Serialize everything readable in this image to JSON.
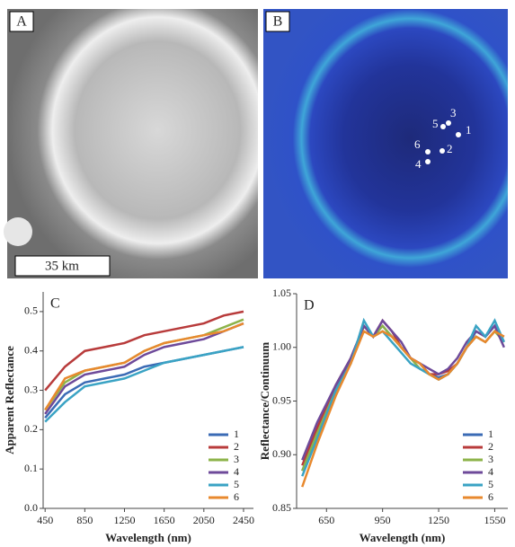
{
  "images": {
    "a": {
      "label": "A",
      "scale_bar": "35 km"
    },
    "b": {
      "label": "B",
      "points": [
        "1",
        "2",
        "3",
        "4",
        "5",
        "6"
      ]
    }
  },
  "chart_data": [
    {
      "type": "line",
      "label": "C",
      "x_label": "Wavelength (nm)",
      "y_label": "Apparent Reflectance",
      "x": [
        450,
        650,
        850,
        1050,
        1250,
        1450,
        1650,
        1850,
        2050,
        2250,
        2450
      ],
      "xlim": [
        430,
        2550
      ],
      "xticks": [
        450,
        850,
        1250,
        1650,
        2050,
        2450
      ],
      "ylim": [
        0,
        0.55
      ],
      "yticks": [
        {
          "value": 0,
          "label": "0.0"
        },
        0.1,
        0.2,
        0.3,
        0.4,
        0.5
      ],
      "legend": "lower right",
      "series": [
        {
          "name": "1",
          "color": "#3b6bb5",
          "values": [
            0.23,
            0.29,
            0.32,
            0.33,
            0.34,
            0.36,
            0.37,
            0.38,
            0.39,
            0.4,
            0.41
          ]
        },
        {
          "name": "2",
          "color": "#b83b3b",
          "values": [
            0.3,
            0.36,
            0.4,
            0.41,
            0.42,
            0.44,
            0.45,
            0.46,
            0.47,
            0.49,
            0.5
          ]
        },
        {
          "name": "3",
          "color": "#8db34a",
          "values": [
            0.25,
            0.32,
            0.35,
            0.36,
            0.37,
            0.4,
            0.42,
            0.43,
            0.44,
            0.46,
            0.48
          ]
        },
        {
          "name": "4",
          "color": "#6e4a9a",
          "values": [
            0.24,
            0.31,
            0.34,
            0.35,
            0.36,
            0.39,
            0.41,
            0.42,
            0.43,
            0.45,
            0.47
          ]
        },
        {
          "name": "5",
          "color": "#3aa3c4",
          "values": [
            0.22,
            0.27,
            0.31,
            0.32,
            0.33,
            0.35,
            0.37,
            0.38,
            0.39,
            0.4,
            0.41
          ]
        },
        {
          "name": "6",
          "color": "#e8892e",
          "values": [
            0.25,
            0.33,
            0.35,
            0.36,
            0.37,
            0.4,
            0.42,
            0.43,
            0.44,
            0.45,
            0.47
          ]
        }
      ]
    },
    {
      "type": "line",
      "label": "D",
      "x_label": "Wavelength (nm)",
      "y_label": "Reflectance/Continuum",
      "x": [
        520,
        600,
        700,
        780,
        850,
        900,
        950,
        1000,
        1050,
        1100,
        1150,
        1200,
        1250,
        1300,
        1350,
        1400,
        1450,
        1500,
        1550,
        1600
      ],
      "xlim": [
        490,
        1620
      ],
      "xticks": [
        650,
        950,
        1250,
        1550
      ],
      "ylim": [
        0.85,
        1.05
      ],
      "yticks": [
        0.85,
        {
          "value": 0.9,
          "label": "0.90"
        },
        0.95,
        {
          "value": 1,
          "label": "1.00"
        },
        1.05
      ],
      "legend": "lower right",
      "series": [
        {
          "name": "1",
          "color": "#3b6bb5",
          "values": [
            0.885,
            0.92,
            0.96,
            0.99,
            1.02,
            1.01,
            1.02,
            1.01,
            1.0,
            0.99,
            0.985,
            0.975,
            0.972,
            0.975,
            0.985,
            1.0,
            1.015,
            1.01,
            1.02,
            1.005
          ]
        },
        {
          "name": "2",
          "color": "#b83b3b",
          "values": [
            0.89,
            0.925,
            0.965,
            0.99,
            1.02,
            1.01,
            1.025,
            1.015,
            1.0,
            0.99,
            0.985,
            0.975,
            0.975,
            0.978,
            0.985,
            1.0,
            1.01,
            1.005,
            1.015,
            1.01
          ]
        },
        {
          "name": "3",
          "color": "#8db34a",
          "values": [
            0.885,
            0.92,
            0.96,
            0.985,
            1.02,
            1.01,
            1.02,
            1.01,
            1.0,
            0.99,
            0.98,
            0.975,
            0.97,
            0.975,
            0.985,
            1.0,
            1.01,
            1.005,
            1.015,
            1.005
          ]
        },
        {
          "name": "4",
          "color": "#6e4a9a",
          "values": [
            0.895,
            0.93,
            0.965,
            0.99,
            1.02,
            1.01,
            1.025,
            1.015,
            1.005,
            0.99,
            0.985,
            0.98,
            0.975,
            0.98,
            0.99,
            1.005,
            1.015,
            1.01,
            1.02,
            1.0
          ]
        },
        {
          "name": "5",
          "color": "#3aa3c4",
          "values": [
            0.88,
            0.915,
            0.96,
            0.985,
            1.025,
            1.01,
            1.015,
            1.005,
            0.995,
            0.985,
            0.98,
            0.975,
            0.97,
            0.975,
            0.985,
            1.0,
            1.02,
            1.01,
            1.025,
            1.005
          ]
        },
        {
          "name": "6",
          "color": "#e8892e",
          "values": [
            0.87,
            0.91,
            0.955,
            0.985,
            1.015,
            1.01,
            1.015,
            1.01,
            1.0,
            0.99,
            0.985,
            0.975,
            0.97,
            0.975,
            0.985,
            1.0,
            1.01,
            1.005,
            1.015,
            1.01
          ]
        }
      ]
    }
  ]
}
